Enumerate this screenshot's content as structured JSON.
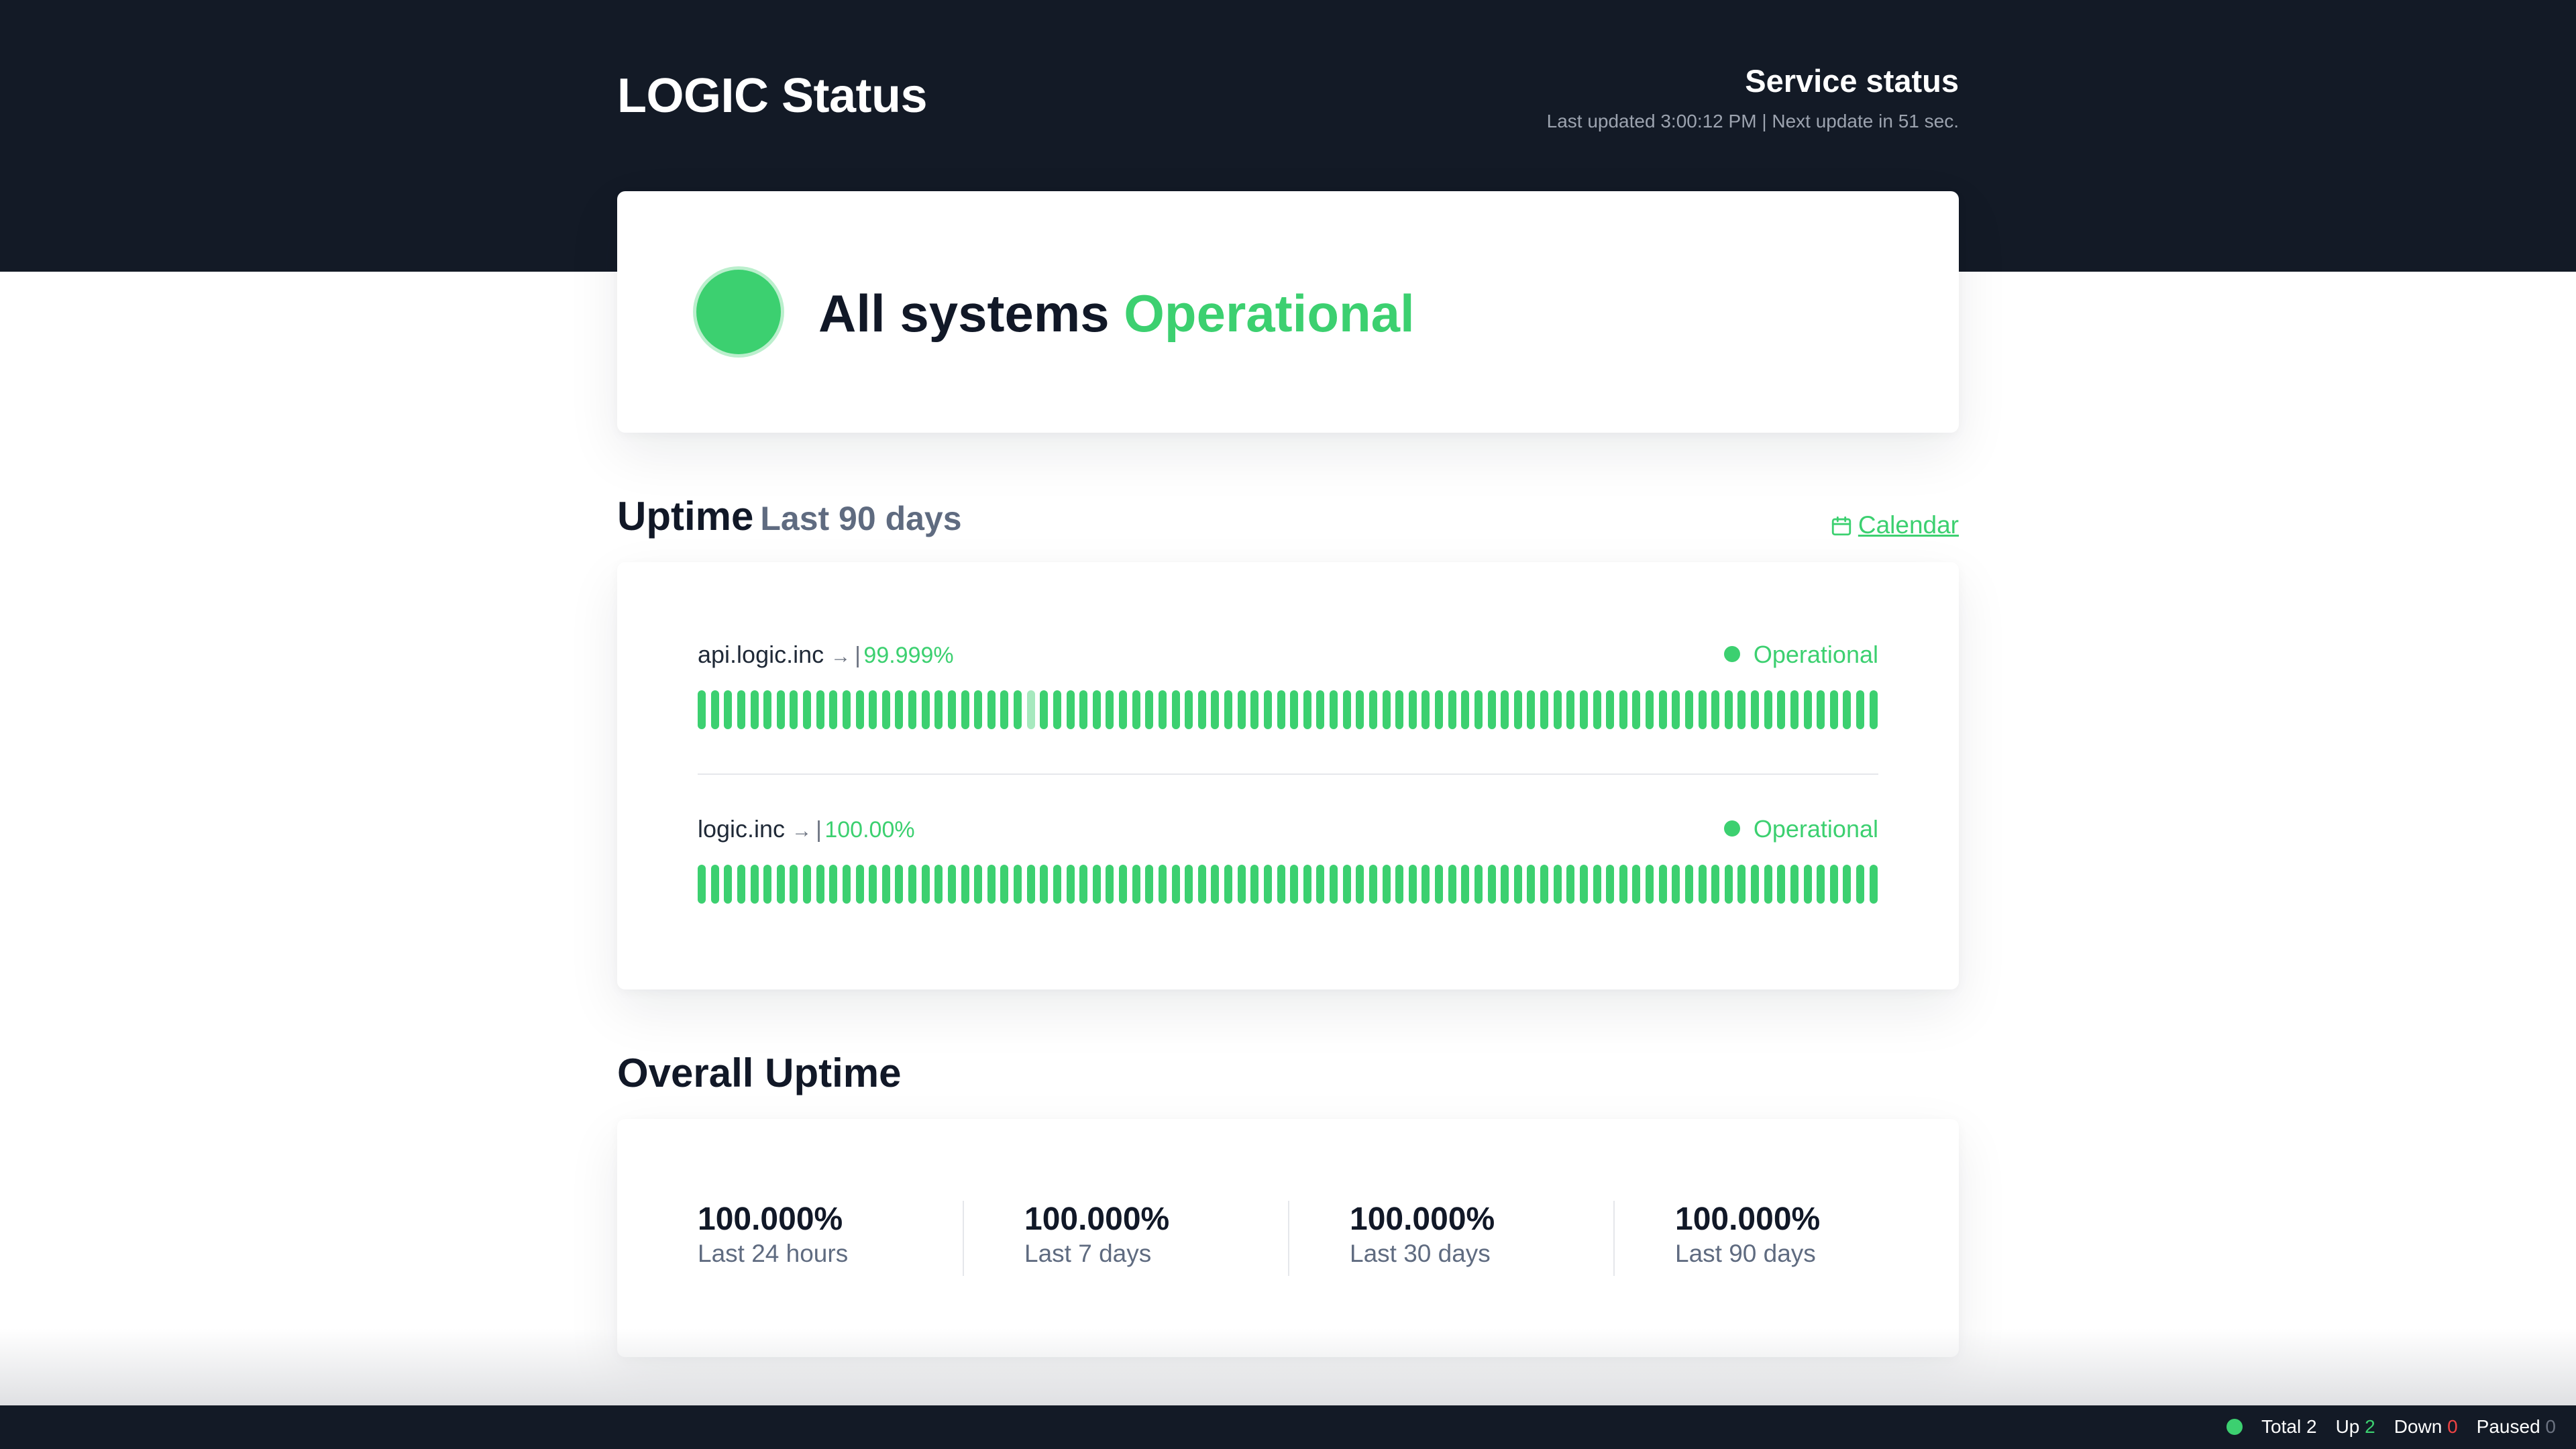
{
  "header": {
    "brand": "LOGIC Status",
    "service_title": "Service status",
    "last_updated_meta": "Last updated 3:00:12 PM | Next update in 51 sec."
  },
  "overall_status": {
    "prefix": "All systems",
    "state": "Operational",
    "color": "#3cd070"
  },
  "uptime": {
    "title": "Uptime",
    "subtitle": "Last 90 days",
    "calendar_label": "Calendar",
    "calendar_icon": "calendar-icon",
    "monitors": [
      {
        "name": "api.logic.inc",
        "arrow": "→",
        "separator": "|",
        "percent": "99.999%",
        "status": "Operational",
        "bars": 90,
        "partial_bar_index": 25
      },
      {
        "name": "logic.inc",
        "arrow": "→",
        "separator": "|",
        "percent": "100.00%",
        "status": "Operational",
        "bars": 90,
        "partial_bar_index": -1
      }
    ]
  },
  "overall_uptime": {
    "title": "Overall Uptime",
    "stats": [
      {
        "value": "100.000%",
        "label": "Last 24 hours"
      },
      {
        "value": "100.000%",
        "label": "Last 7 days"
      },
      {
        "value": "100.000%",
        "label": "Last 30 days"
      },
      {
        "value": "100.000%",
        "label": "Last 90 days"
      }
    ]
  },
  "footer": {
    "total_label": "Total",
    "total_value": "2",
    "up_label": "Up",
    "up_value": "2",
    "down_label": "Down",
    "down_value": "0",
    "paused_label": "Paused",
    "paused_value": "0"
  },
  "colors": {
    "accent": "#3cd070",
    "hero_bg": "#131a26",
    "down": "#ef4444"
  }
}
